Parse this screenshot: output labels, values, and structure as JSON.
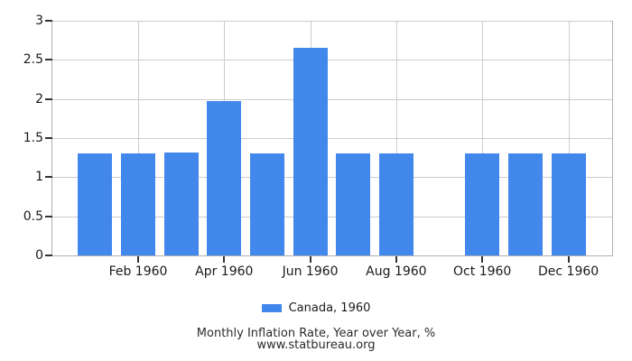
{
  "chart_data": {
    "type": "bar",
    "title": "Monthly Inflation Rate, Year over Year, %",
    "source": "www.statbureau.org",
    "legend": [
      {
        "label": "Canada, 1960",
        "color": "#4287ec"
      }
    ],
    "legend_position": "bottom",
    "bar_color": "#4287ec",
    "categories": [
      "Jan 1960",
      "Feb 1960",
      "Mar 1960",
      "Apr 1960",
      "May 1960",
      "Jun 1960",
      "Jul 1960",
      "Aug 1960",
      "Sep 1960",
      "Oct 1960",
      "Nov 1960",
      "Dec 1960"
    ],
    "values": [
      1.31,
      1.31,
      1.32,
      1.97,
      1.31,
      2.65,
      1.31,
      1.31,
      null,
      1.3,
      1.3,
      1.3
    ],
    "x_tick_labels": [
      "Feb 1960",
      "Apr 1960",
      "Jun 1960",
      "Aug 1960",
      "Oct 1960",
      "Dec 1960"
    ],
    "x_tick_indices": [
      1,
      3,
      5,
      7,
      9,
      11
    ],
    "y_ticks": [
      0,
      0.5,
      1,
      1.5,
      2,
      2.5,
      3
    ],
    "ylim": [
      0,
      3
    ],
    "grid": true,
    "colors": {
      "gridline": "#cccccc",
      "axis": "#b0b0b0",
      "tick": "#333333",
      "text": "#1a1a1a"
    }
  }
}
